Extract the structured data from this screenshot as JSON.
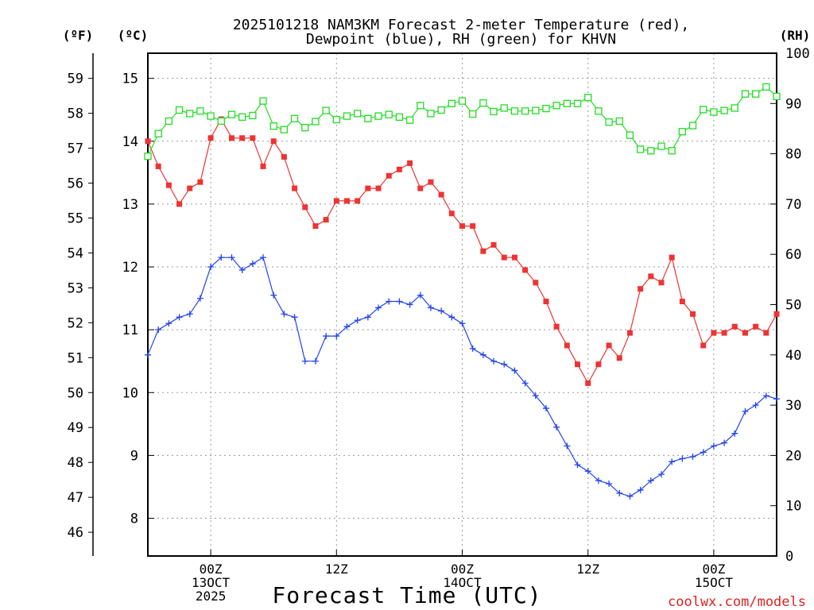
{
  "chart_data": {
    "type": "line",
    "title": "2025101218 NAM3KM Forecast 2-meter Temperature (red),",
    "subtitle": "Dewpoint (blue), RH (green) for KHVN",
    "xlabel": "Forecast Time (UTC)",
    "watermark": "coolwx.com/models",
    "unit_labels": {
      "fahrenheit": "(ºF)",
      "celsius": "(ºC)",
      "rh": "(RH)"
    },
    "x_units": "forecast hour (0 = 2025-10-12 18Z)",
    "xlim": [
      0,
      60
    ],
    "x_ticks": [
      {
        "x": 6,
        "lines": [
          "00Z",
          "13OCT",
          "2025"
        ]
      },
      {
        "x": 18,
        "lines": [
          "12Z"
        ]
      },
      {
        "x": 30,
        "lines": [
          "00Z",
          "14OCT"
        ]
      },
      {
        "x": 42,
        "lines": [
          "12Z"
        ]
      },
      {
        "x": 54,
        "lines": [
          "00Z",
          "15OCT"
        ]
      }
    ],
    "y_celsius": {
      "lim": [
        7.4,
        15.4
      ],
      "ticks": [
        8,
        9,
        10,
        11,
        12,
        13,
        14,
        15
      ]
    },
    "y_fahrenheit": {
      "ticks": [
        46,
        47,
        48,
        49,
        50,
        51,
        52,
        53,
        54,
        55,
        56,
        57,
        58,
        59
      ]
    },
    "y_rh": {
      "lim": [
        0,
        100
      ],
      "ticks": [
        0,
        10,
        20,
        30,
        40,
        50,
        60,
        70,
        80,
        90,
        100
      ]
    },
    "colors": {
      "temperature": "#ee3333",
      "dewpoint": "#2244ee",
      "rh": "#22dd22",
      "watermark": "#dd2222"
    },
    "series": [
      {
        "name": "Temperature",
        "axis": "celsius",
        "color": "#ee3333",
        "marker": "filled-square",
        "values": [
          14.0,
          13.6,
          13.3,
          13.0,
          13.25,
          13.35,
          14.05,
          14.35,
          14.05,
          14.05,
          14.05,
          13.6,
          14.0,
          13.75,
          13.25,
          12.95,
          12.65,
          12.75,
          13.05,
          13.05,
          13.05,
          13.25,
          13.25,
          13.45,
          13.55,
          13.65,
          13.25,
          13.35,
          13.15,
          12.85,
          12.65,
          12.65,
          12.25,
          12.35,
          12.15,
          12.15,
          11.95,
          11.75,
          11.45,
          11.05,
          10.75,
          10.45,
          10.15,
          10.45,
          10.75,
          10.55,
          10.95,
          11.65,
          11.85,
          11.75,
          12.15,
          11.45,
          11.25,
          10.75,
          10.95,
          10.95,
          11.05,
          10.95,
          11.05,
          10.95,
          11.25
        ]
      },
      {
        "name": "Dewpoint",
        "axis": "celsius",
        "color": "#2244ee",
        "marker": "plus",
        "values": [
          10.6,
          11.0,
          11.1,
          11.2,
          11.25,
          11.5,
          12.0,
          12.15,
          12.15,
          11.95,
          12.05,
          12.15,
          11.55,
          11.25,
          11.2,
          10.5,
          10.5,
          10.9,
          10.9,
          11.05,
          11.15,
          11.2,
          11.35,
          11.45,
          11.45,
          11.4,
          11.55,
          11.35,
          11.3,
          11.2,
          11.1,
          10.7,
          10.6,
          10.5,
          10.45,
          10.35,
          10.15,
          9.95,
          9.75,
          9.45,
          9.15,
          8.85,
          8.75,
          8.6,
          8.55,
          8.4,
          8.35,
          8.45,
          8.6,
          8.7,
          8.9,
          8.95,
          8.98,
          9.05,
          9.15,
          9.2,
          9.35,
          9.7,
          9.8,
          9.95,
          9.9
        ]
      },
      {
        "name": "RH",
        "axis": "rh",
        "color": "#22dd22",
        "marker": "open-square",
        "values": [
          79.5,
          84,
          86.5,
          88.7,
          88,
          88.5,
          87.5,
          86.5,
          87.8,
          87.3,
          87.6,
          90.5,
          85.5,
          84.8,
          87,
          85.2,
          86.4,
          88.6,
          86.8,
          87.5,
          88,
          87,
          87.5,
          87.8,
          87.3,
          86.7,
          89.6,
          88,
          88.7,
          90,
          90.5,
          87.9,
          90.1,
          88.4,
          89.1,
          88.5,
          88.5,
          88.6,
          89,
          89.6,
          90,
          90,
          91.2,
          88.5,
          86.3,
          86.5,
          83.7,
          80.9,
          80.6,
          81.5,
          80.6,
          84.4,
          85.6,
          88.8,
          88.3,
          88.6,
          89.1,
          91.9,
          91.9,
          93.3,
          91.4
        ]
      }
    ]
  }
}
